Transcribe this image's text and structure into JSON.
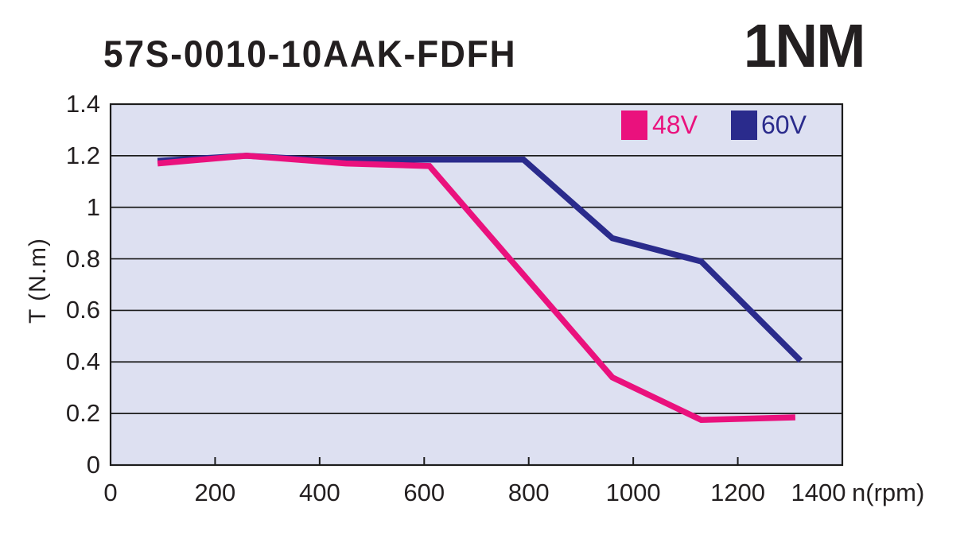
{
  "header": {
    "model": "57S-0010-10AAK-FDFH",
    "rating": "1NM"
  },
  "chart_data": {
    "type": "line",
    "xlabel": "n(rpm)",
    "ylabel": "T (N.m)",
    "xlim": [
      0,
      1400
    ],
    "ylim": [
      0,
      1.4
    ],
    "x_ticks": [
      0,
      200,
      400,
      600,
      800,
      1000,
      1200,
      1400
    ],
    "y_ticks": [
      0,
      0.2,
      0.4,
      0.6,
      0.8,
      1,
      1.2,
      1.4
    ],
    "grid": "horizontal",
    "legend_position": "top-right-inside",
    "colors": {
      "plot_background": "#dde0f1",
      "grid_line": "#1c1c1c",
      "axis_text": "#231f20"
    },
    "series": [
      {
        "name": "48V",
        "color": "#ea117d",
        "x": [
          90,
          260,
          450,
          610,
          960,
          1130,
          1310
        ],
        "y": [
          1.17,
          1.2,
          1.17,
          1.16,
          0.34,
          0.175,
          0.185
        ]
      },
      {
        "name": "60V",
        "color": "#2a2b8c",
        "x": [
          90,
          260,
          390,
          790,
          960,
          1130,
          1320
        ],
        "y": [
          1.18,
          1.2,
          1.185,
          1.185,
          0.88,
          0.79,
          0.405
        ]
      }
    ]
  }
}
